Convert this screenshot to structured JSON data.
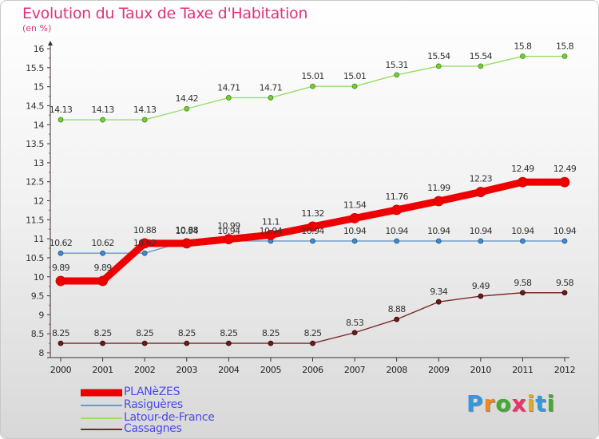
{
  "title": "Evolution du Taux de Taxe d'Habitation",
  "subtitle": "(en %)",
  "logo_text": "Proxiti",
  "chart_data": {
    "type": "line",
    "title": "Evolution du Taux de Taxe d'Habitation",
    "subtitle": "(en %)",
    "xlabel": "",
    "ylabel": "(en %)",
    "ylim": [
      8,
      16
    ],
    "yticks": [
      "8",
      "8.5",
      "9",
      "9.5",
      "10",
      "10.5",
      "11",
      "11.5",
      "12",
      "12.5",
      "13",
      "13.5",
      "14",
      "14.5",
      "15",
      "15.5",
      "16"
    ],
    "x": [
      "2000",
      "2001",
      "2002",
      "2003",
      "2004",
      "2005",
      "2006",
      "2007",
      "2008",
      "2009",
      "2010",
      "2011",
      "2012"
    ],
    "grid": false,
    "legend_position": "bottom-left",
    "series": [
      {
        "name": "PLANèZES",
        "color": "#ee0000",
        "values": [
          9.89,
          9.89,
          10.88,
          10.88,
          10.99,
          11.1,
          11.32,
          11.54,
          11.76,
          11.99,
          12.23,
          12.49,
          12.49
        ]
      },
      {
        "name": "Rasiguères",
        "color": "#6699cc",
        "values": [
          10.62,
          10.62,
          10.62,
          10.94,
          10.94,
          10.94,
          10.94,
          10.94,
          10.94,
          10.94,
          10.94,
          10.94,
          10.94
        ]
      },
      {
        "name": "Latour-de-France",
        "color": "#99dd66",
        "values": [
          14.13,
          14.13,
          14.13,
          14.42,
          14.71,
          14.71,
          15.01,
          15.01,
          15.31,
          15.54,
          15.54,
          15.8,
          15.8
        ]
      },
      {
        "name": "Cassagnes",
        "color": "#7a2a2a",
        "values": [
          8.25,
          8.25,
          8.25,
          8.25,
          8.25,
          8.25,
          8.25,
          8.53,
          8.88,
          9.34,
          9.49,
          9.58,
          9.58
        ]
      }
    ]
  }
}
